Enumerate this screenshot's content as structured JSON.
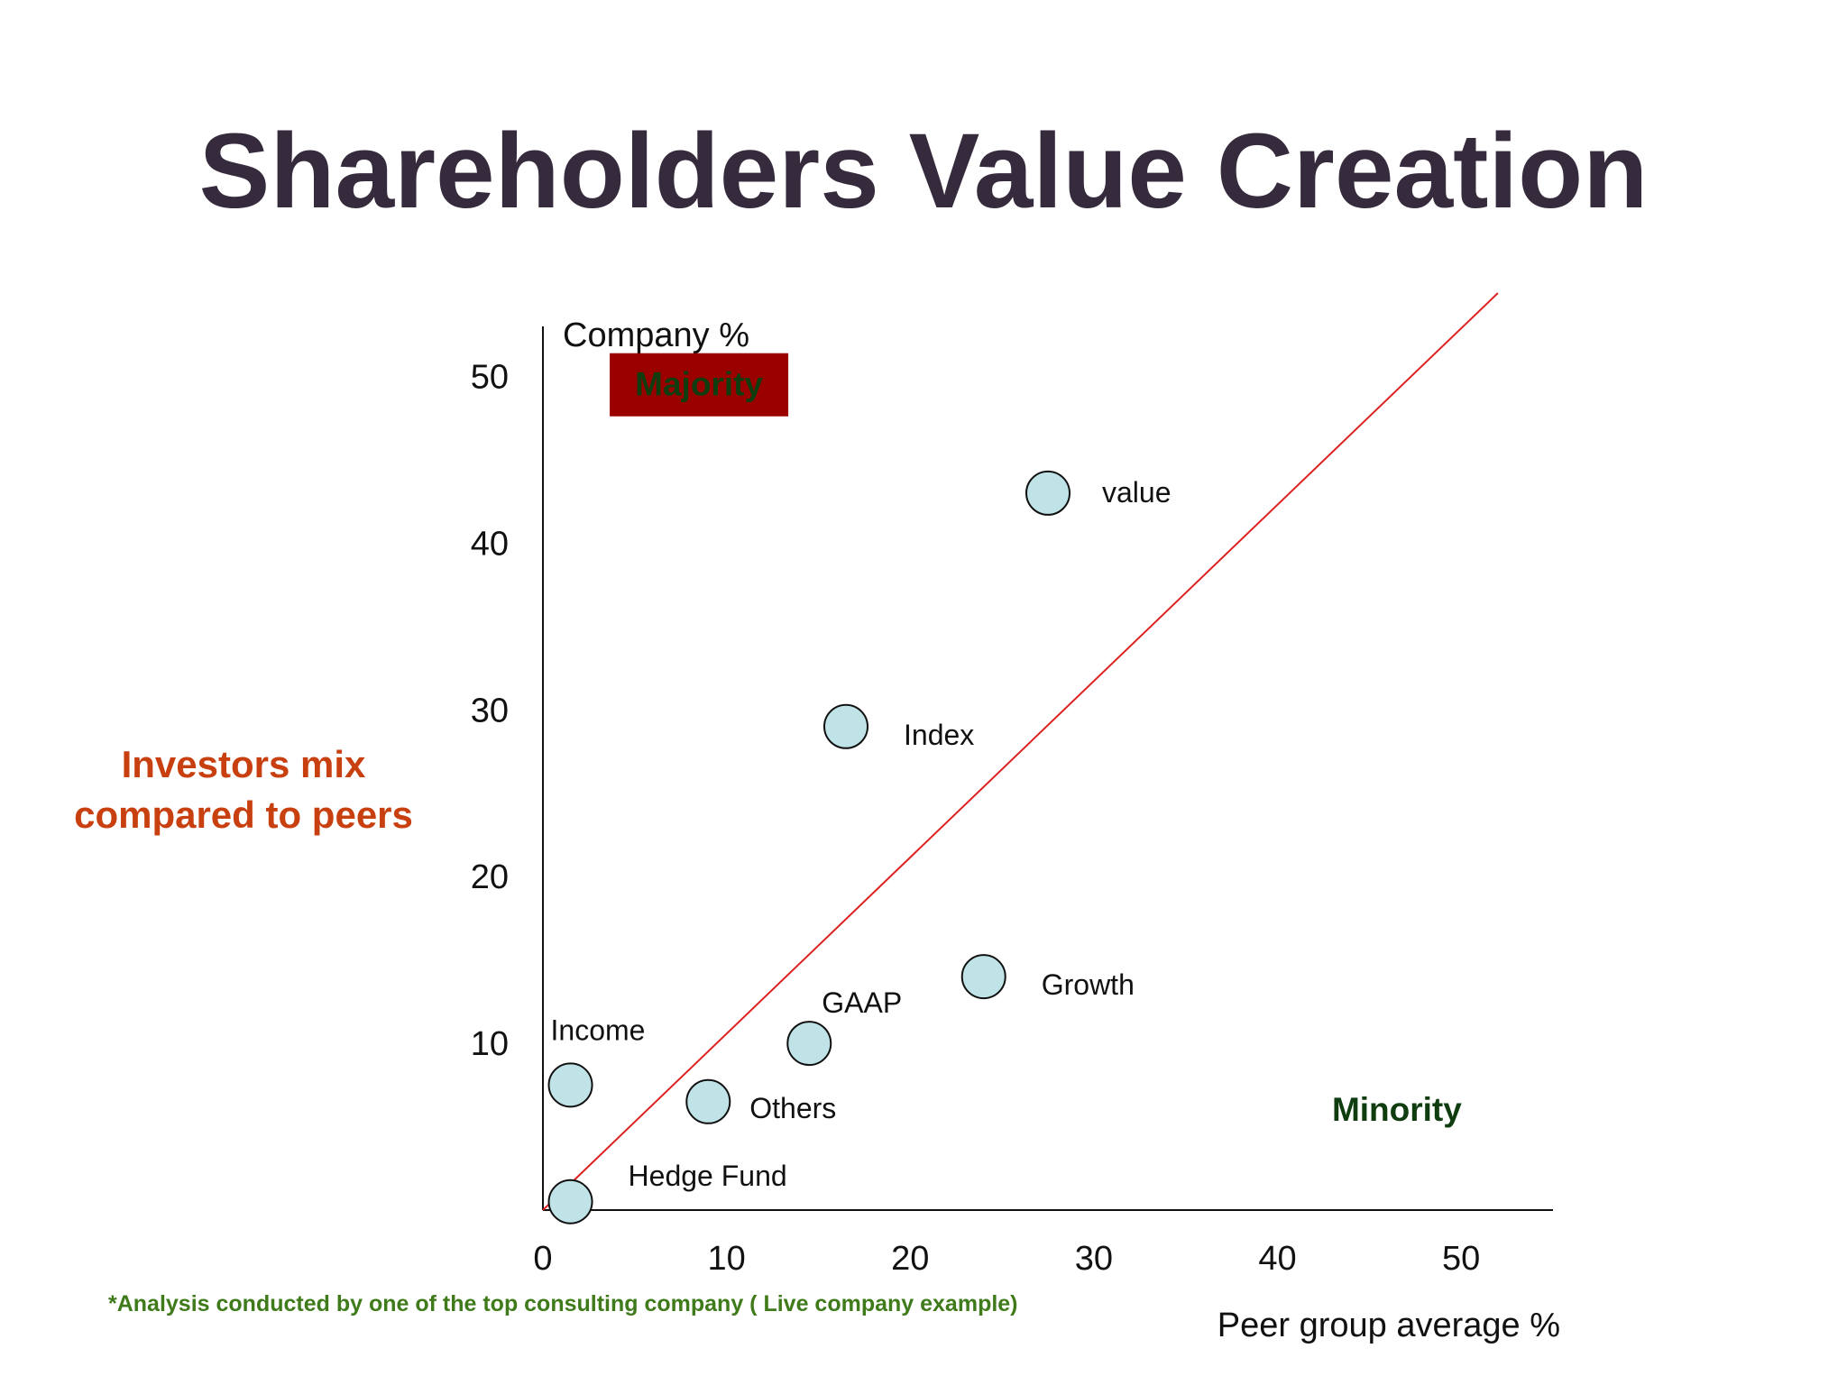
{
  "slide": {
    "title": "Shareholders Value Creation",
    "side_label_lines": [
      "Investors mix",
      "compared to peers"
    ],
    "footnote": "*Analysis conducted by one of the top consulting company ( Live company example)"
  },
  "chart_data": {
    "type": "scatter",
    "xlabel": "Peer group average %",
    "ylabel": "Company %",
    "xlim": [
      0,
      55
    ],
    "ylim": [
      0,
      53
    ],
    "x_ticks": [
      0,
      10,
      20,
      30,
      40,
      50
    ],
    "y_ticks": [
      10,
      20,
      30,
      40,
      50
    ],
    "grid": false,
    "reference_line": {
      "from": [
        0,
        0
      ],
      "to": [
        52,
        55
      ],
      "color": "#dd2222"
    },
    "point_color": "#bfe3e6",
    "series": [
      {
        "points": [
          {
            "label": "value",
            "x": 27.5,
            "y": 43
          },
          {
            "label": "Index",
            "x": 16.5,
            "y": 29
          },
          {
            "label": "Growth",
            "x": 24,
            "y": 14
          },
          {
            "label": "GAAP",
            "x": 14.5,
            "y": 10
          },
          {
            "label": "Income",
            "x": 1.5,
            "y": 7.5
          },
          {
            "label": "Others",
            "x": 9,
            "y": 6.5
          },
          {
            "label": "Hedge Fund",
            "x": 1.5,
            "y": 0.5
          }
        ]
      }
    ],
    "annotations": [
      {
        "text": "Majority",
        "x": 8.5,
        "y": 49.5,
        "box_color": "#9b0000",
        "text_color": "#0f3d0f"
      },
      {
        "text": "Minority",
        "x": 46.5,
        "y": 6.0,
        "text_color": "#0f3d0f"
      }
    ]
  }
}
